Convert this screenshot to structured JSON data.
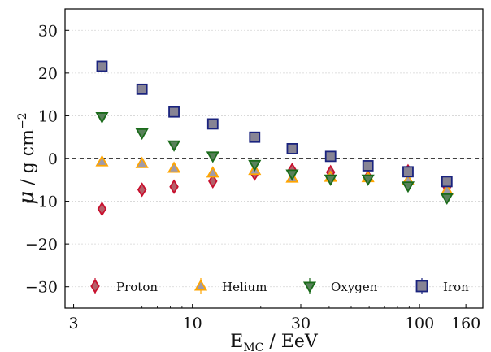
{
  "chart_data": {
    "type": "scatter",
    "x_scale": "log",
    "xlabel": {
      "main": "E",
      "sub": "MC",
      "rest": " / EeV"
    },
    "ylabel": {
      "main": "μ",
      "rest": " / g cm",
      "sup": "−2"
    },
    "xlim": [
      2.75,
      190
    ],
    "ylim": [
      -35,
      35
    ],
    "x_ticks": [
      3,
      10,
      30,
      100,
      160
    ],
    "x_tick_labels": [
      "3",
      "10",
      "30",
      "100",
      "160"
    ],
    "y_ticks": [
      -30,
      -20,
      -10,
      0,
      10,
      20,
      30
    ],
    "y_tick_labels": [
      "−30",
      "−20",
      "−10",
      "0",
      "10",
      "20",
      "30"
    ],
    "y_grid": true,
    "reference_line": 0,
    "legend_position": "bottom",
    "series": [
      {
        "name": "Proton",
        "marker": "diamond",
        "fill": "#b5606a",
        "stroke": "#c8102e",
        "x": [
          4.0,
          6.0,
          8.3,
          12.3,
          18.8,
          27.5,
          40.6,
          59.3,
          89.0,
          132.0
        ],
        "y": [
          -11.8,
          -7.3,
          -6.6,
          -5.3,
          -3.5,
          -2.7,
          -3.2,
          -4.4,
          -3.0,
          -6.6
        ]
      },
      {
        "name": "Helium",
        "marker": "triangle-up",
        "fill": "#a09aa8",
        "stroke": "#ffa500",
        "x": [
          4.0,
          6.0,
          8.3,
          12.3,
          18.8,
          27.5,
          40.6,
          59.3,
          89.0,
          132.0
        ],
        "y": [
          -0.8,
          -1.2,
          -2.3,
          -3.4,
          -2.8,
          -4.6,
          -4.4,
          -4.5,
          -5.2,
          -7.5
        ]
      },
      {
        "name": "Oxygen",
        "marker": "triangle-down",
        "fill": "#58815a",
        "stroke": "#1a6b1a",
        "x": [
          4.0,
          6.0,
          8.3,
          12.3,
          18.8,
          27.5,
          40.6,
          59.3,
          89.0,
          132.0
        ],
        "y": [
          9.8,
          6.0,
          3.2,
          0.6,
          -1.4,
          -3.6,
          -4.8,
          -4.8,
          -6.4,
          -9.2
        ]
      },
      {
        "name": "Iron",
        "marker": "square",
        "fill": "#878494",
        "stroke": "#1a237e",
        "x": [
          4.0,
          6.0,
          8.3,
          12.3,
          18.8,
          27.5,
          40.6,
          59.3,
          89.0,
          132.0
        ],
        "y": [
          21.6,
          16.2,
          10.9,
          8.1,
          5.0,
          2.3,
          0.5,
          -1.7,
          -3.1,
          -5.4
        ]
      }
    ]
  }
}
